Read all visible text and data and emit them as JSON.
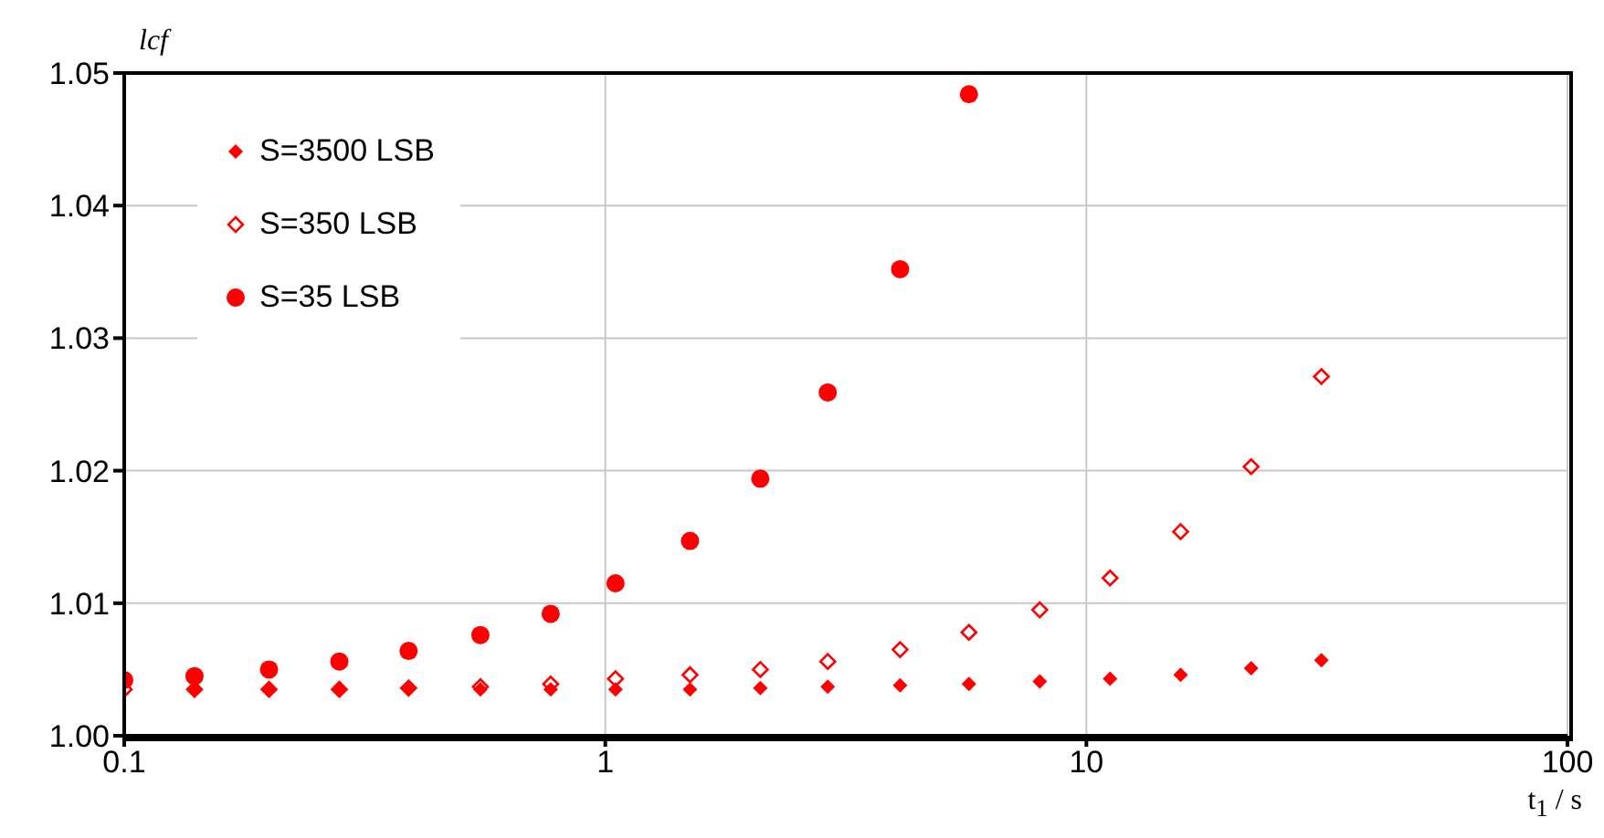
{
  "chart_data": {
    "type": "scatter",
    "xlabel": "t$_{1}$ / s",
    "ylabel": "lcf",
    "log": "x",
    "grid": true,
    "legend": "top left",
    "xlim": [
      0.1,
      100
    ],
    "xticks": [
      0.1,
      1,
      10,
      100
    ],
    "ylim": [
      1.0,
      1.05
    ],
    "yticks": [
      {
        "value": 1.0,
        "label": "1.00"
      },
      {
        "value": 1.01,
        "label": "1.01"
      },
      {
        "value": 1.02,
        "label": "1.02"
      },
      {
        "value": 1.03,
        "label": "1.03"
      },
      {
        "value": 1.04,
        "label": "1.04"
      },
      {
        "value": 1.05,
        "label": "1.05"
      }
    ],
    "x": [
      0.1,
      0.14,
      0.2,
      0.28,
      0.39,
      0.55,
      0.77,
      1.05,
      1.5,
      2.1,
      2.9,
      4.1,
      5.7,
      8,
      11.2,
      15.7,
      22,
      30.8
    ],
    "series": [
      {
        "name": "S=3500 LSB",
        "color": "#ff0000",
        "marker": "diamond",
        "values": [
          null,
          1.0035,
          1.0035,
          1.0035,
          1.0035,
          1.0035,
          1.0035,
          1.0035,
          1.0035,
          1.0036,
          1.0037,
          1.0038,
          1.0039,
          1.0041,
          1.0043,
          1.0046,
          1.0051,
          1.0057
        ]
      },
      {
        "name": "S=350 LSB",
        "color": "#ff0000",
        "marker": "diamond-open",
        "values": [
          1.0035,
          1.0035,
          1.0035,
          1.0035,
          1.0036,
          1.0037,
          1.0039,
          1.0043,
          1.0046,
          1.005,
          1.0056,
          1.0065,
          1.0078,
          1.0095,
          1.0119,
          1.0154,
          1.0203,
          1.0271
        ]
      },
      {
        "name": "S=35 LSB",
        "color": "#ff0000",
        "marker": "circle",
        "values": [
          1.0042,
          1.0045,
          1.005,
          1.0056,
          1.0064,
          1.0076,
          1.0092,
          1.0115,
          1.0147,
          1.0194,
          1.0259,
          1.0352,
          1.0484,
          null,
          null,
          null,
          null,
          null
        ]
      }
    ]
  }
}
